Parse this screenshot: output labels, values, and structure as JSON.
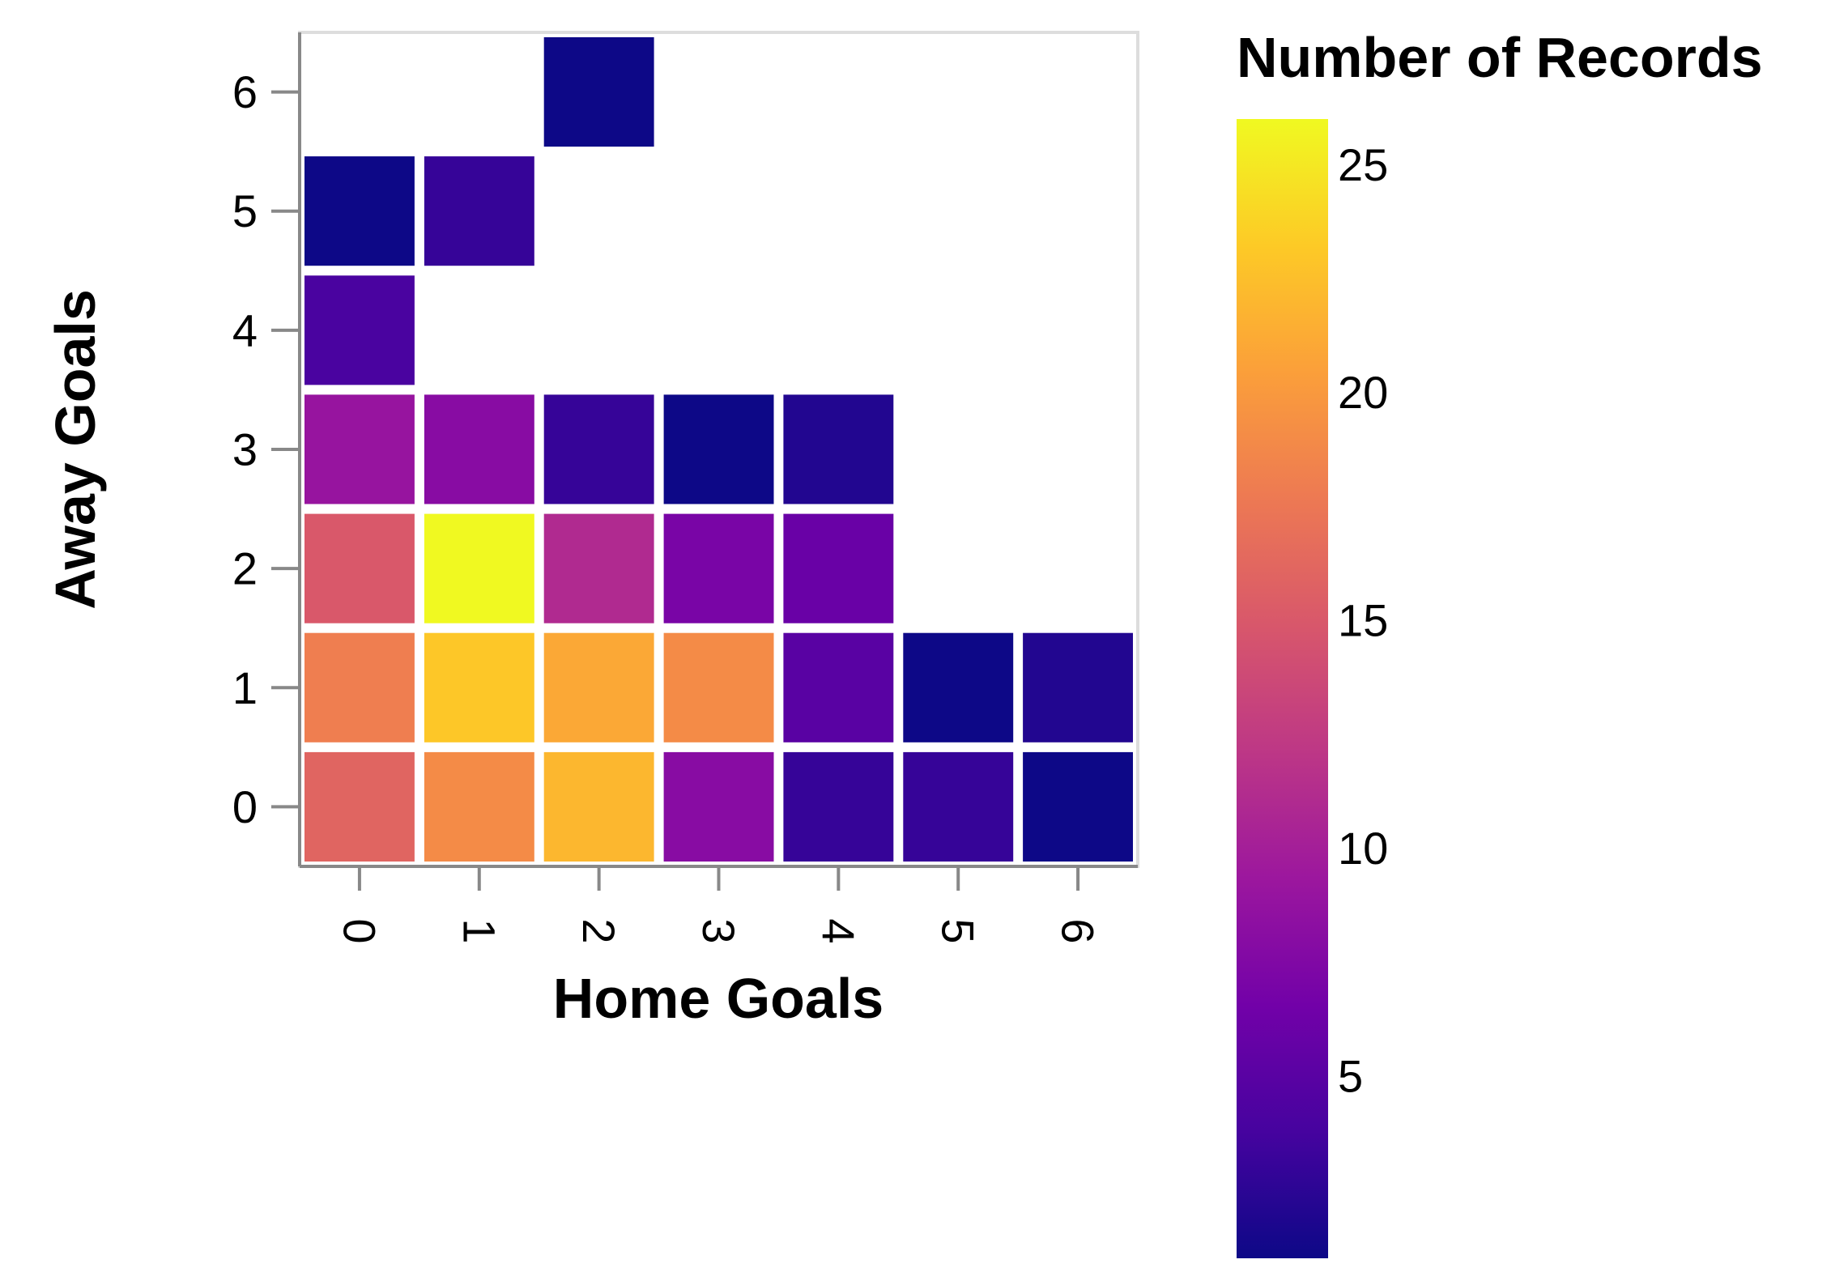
{
  "chart_data": {
    "type": "heatmap",
    "xlabel": "Home Goals",
    "ylabel": "Away Goals",
    "x_categories": [
      "0",
      "1",
      "2",
      "3",
      "4",
      "5",
      "6"
    ],
    "y_categories": [
      "0",
      "1",
      "2",
      "3",
      "4",
      "5",
      "6"
    ],
    "cells": [
      {
        "x": 0,
        "y": 0,
        "value": 16
      },
      {
        "x": 1,
        "y": 0,
        "value": 19
      },
      {
        "x": 2,
        "y": 0,
        "value": 22
      },
      {
        "x": 3,
        "y": 0,
        "value": 8
      },
      {
        "x": 4,
        "y": 0,
        "value": 3
      },
      {
        "x": 5,
        "y": 0,
        "value": 3
      },
      {
        "x": 6,
        "y": 0,
        "value": 1
      },
      {
        "x": 0,
        "y": 1,
        "value": 18
      },
      {
        "x": 1,
        "y": 1,
        "value": 23
      },
      {
        "x": 2,
        "y": 1,
        "value": 21
      },
      {
        "x": 3,
        "y": 1,
        "value": 19
      },
      {
        "x": 4,
        "y": 1,
        "value": 5
      },
      {
        "x": 5,
        "y": 1,
        "value": 1
      },
      {
        "x": 6,
        "y": 1,
        "value": 2
      },
      {
        "x": 0,
        "y": 2,
        "value": 15
      },
      {
        "x": 1,
        "y": 2,
        "value": 26
      },
      {
        "x": 2,
        "y": 2,
        "value": 11
      },
      {
        "x": 3,
        "y": 2,
        "value": 7
      },
      {
        "x": 4,
        "y": 2,
        "value": 6
      },
      {
        "x": 0,
        "y": 3,
        "value": 9
      },
      {
        "x": 1,
        "y": 3,
        "value": 8
      },
      {
        "x": 2,
        "y": 3,
        "value": 3
      },
      {
        "x": 3,
        "y": 3,
        "value": 1
      },
      {
        "x": 4,
        "y": 3,
        "value": 2
      },
      {
        "x": 0,
        "y": 4,
        "value": 4
      },
      {
        "x": 0,
        "y": 5,
        "value": 1
      },
      {
        "x": 1,
        "y": 5,
        "value": 3
      },
      {
        "x": 2,
        "y": 6,
        "value": 1
      }
    ],
    "legend": {
      "title": "Number of Records",
      "placement": "right",
      "min": 1,
      "max": 26,
      "ticks": [
        5,
        10,
        15,
        20,
        25
      ]
    },
    "color_scheme": "plasma",
    "color_stops": [
      "#0d0887",
      "#46039f",
      "#7201a8",
      "#9c179e",
      "#bd3786",
      "#d8576b",
      "#ed7953",
      "#fb9f3a",
      "#fdca26",
      "#f0f921"
    ],
    "grid": false
  }
}
